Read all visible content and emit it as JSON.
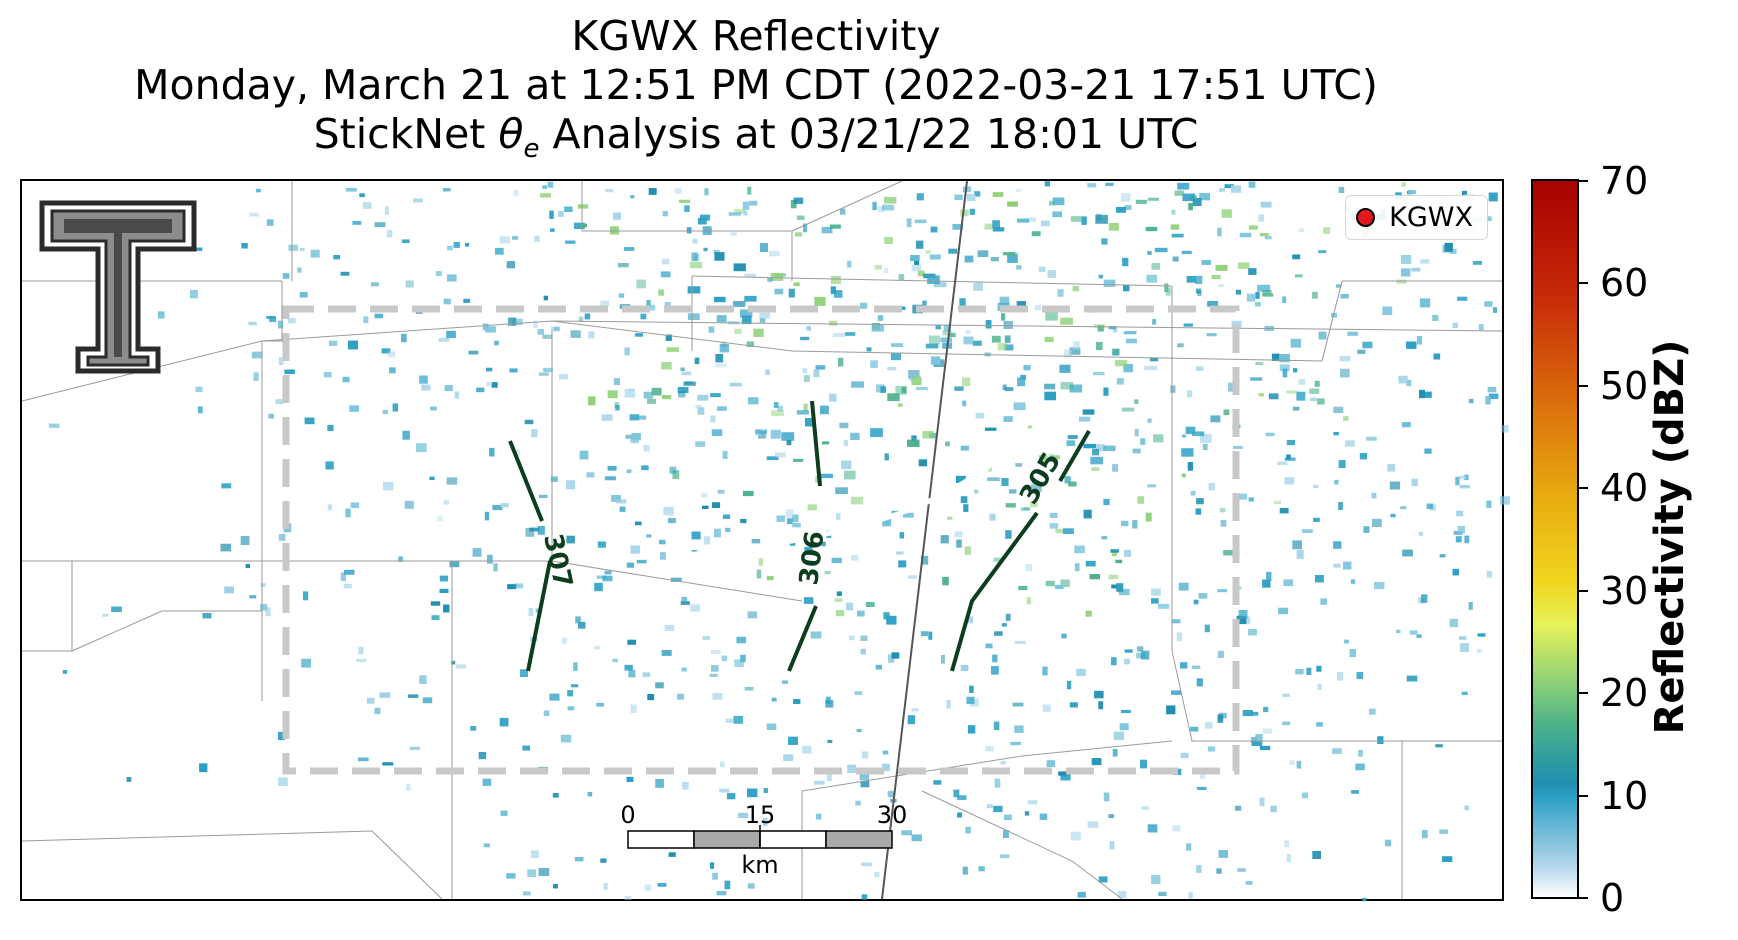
{
  "title": {
    "line1": "KGWX Reflectivity",
    "line2": "Monday, March 21 at 12:51 PM CDT (2022-03-21 17:51 UTC)",
    "line3_prefix": "StickNet ",
    "line3_symbol": "θ",
    "line3_sub": "e",
    "line3_suffix": " Analysis at 03/21/22 18:01 UTC"
  },
  "legend": {
    "label": "KGWX",
    "marker_color": "#e31a1c"
  },
  "contours": [
    {
      "label": "307",
      "color": "#0b3d1e"
    },
    {
      "label": "306",
      "color": "#0b3d1e"
    },
    {
      "label": "305",
      "color": "#0b3d1e"
    }
  ],
  "scalebar": {
    "ticks": [
      "0",
      "15",
      "30"
    ],
    "unit": "km"
  },
  "colorbar": {
    "label": "Reflectivity (dBZ)",
    "ticks": [
      "0",
      "10",
      "20",
      "30",
      "40",
      "50",
      "60",
      "70"
    ],
    "range": [
      0,
      70
    ],
    "colors": [
      "#ffffff",
      "#2c9fc4",
      "#8ed077",
      "#e6f25a",
      "#e8ab10",
      "#d96a0c",
      "#c72a08",
      "#a80000"
    ]
  },
  "icons": {
    "logo": "texas-tech-double-t-logo"
  },
  "colors": {
    "contour": "#0b3d1e",
    "analysis_box": "#c8c8c8",
    "radar_echo": "#2c9fc4"
  }
}
